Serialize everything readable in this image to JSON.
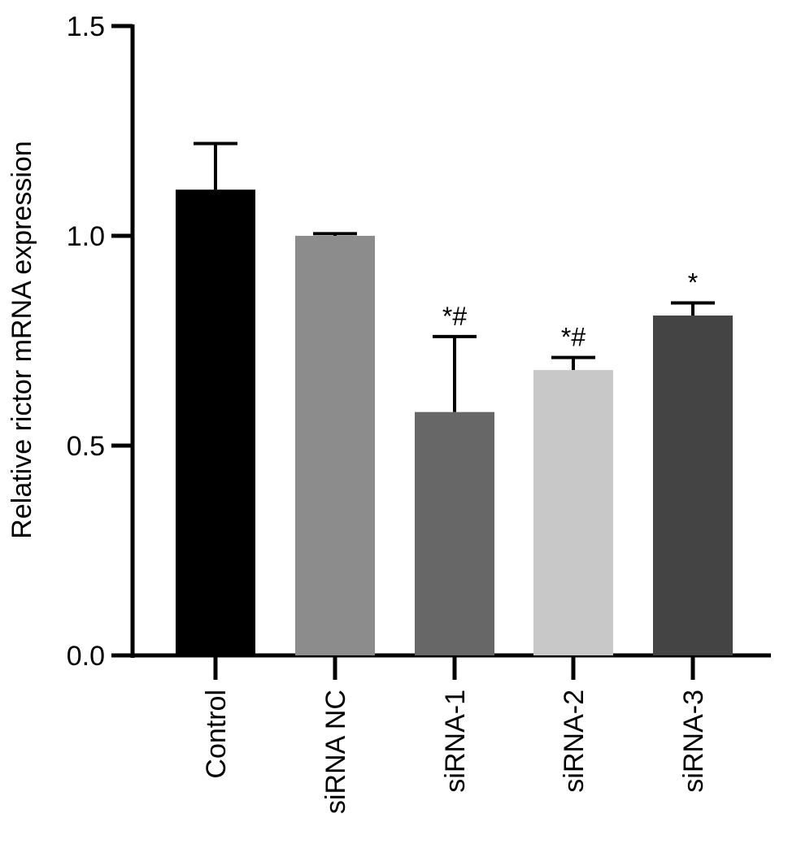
{
  "chart_data": {
    "type": "bar",
    "title": "",
    "xlabel": "",
    "ylabel": "Relative rictor mRNA expression",
    "ylim": [
      0,
      1.5
    ],
    "yticks": [
      "0.0",
      "0.5",
      "1.0",
      "1.5"
    ],
    "grid": false,
    "legend": "none",
    "bars": [
      {
        "category": "Control",
        "value": 1.11,
        "error": 0.11,
        "color": "#000000",
        "annotation": ""
      },
      {
        "category": "siRNA NC",
        "value": 1.0,
        "error": 0.005,
        "color": "#8c8c8c",
        "annotation": ""
      },
      {
        "category": "siRNA-1",
        "value": 0.58,
        "error": 0.18,
        "color": "#676767",
        "annotation": "*#"
      },
      {
        "category": "siRNA-2",
        "value": 0.68,
        "error": 0.03,
        "color": "#c8c8c8",
        "annotation": "*#"
      },
      {
        "category": "siRNA-3",
        "value": 0.81,
        "error": 0.03,
        "color": "#444444",
        "annotation": "*"
      }
    ]
  }
}
